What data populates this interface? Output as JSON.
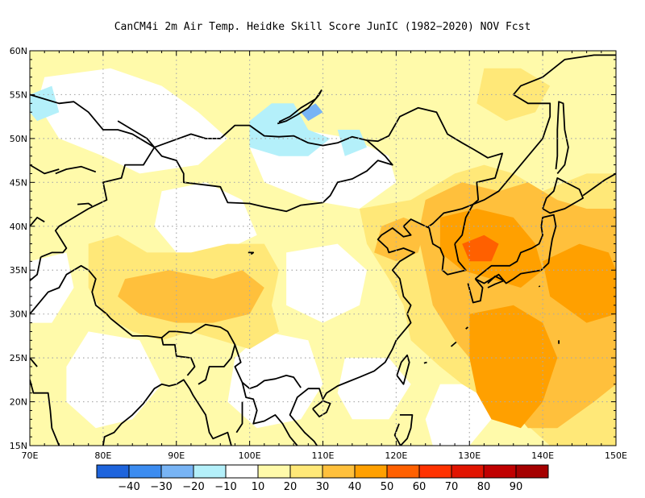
{
  "title": "CanCM4i  2m Air Temp. Heidke Skill Score JunIC (1982−2020) NOV Fcst",
  "lat_labels": [
    "60N",
    "55N",
    "50N",
    "45N",
    "40N",
    "35N",
    "30N",
    "25N",
    "20N",
    "15N"
  ],
  "lat_values": [
    60,
    55,
    50,
    45,
    40,
    35,
    30,
    25,
    20,
    15
  ],
  "lon_labels": [
    "70E",
    "80E",
    "90E",
    "100E",
    "110E",
    "120E",
    "130E",
    "140E",
    "150E"
  ],
  "lon_values": [
    70,
    80,
    90,
    100,
    110,
    120,
    130,
    140,
    150
  ],
  "colorbar": {
    "labels": [
      "−40",
      "−30",
      "−20",
      "−10",
      "10",
      "20",
      "30",
      "40",
      "50",
      "60",
      "70",
      "80",
      "90"
    ],
    "colors": [
      "#1e64dc",
      "#3c8cf0",
      "#78b4f5",
      "#b4f0fa",
      "#ffffff",
      "#fffaaa",
      "#ffe878",
      "#ffc03c",
      "#ffa000",
      "#ff6000",
      "#ff3200",
      "#e11400",
      "#c00000",
      "#a50000"
    ]
  },
  "chart_data": {
    "type": "heatmap",
    "title": "CanCM4i  2m Air Temp. Heidke Skill Score JunIC (1982−2020) NOV Fcst",
    "xlim": [
      70,
      150
    ],
    "ylim": [
      15,
      60
    ],
    "grid": "dotted",
    "levels": [
      -40,
      -30,
      -20,
      -10,
      10,
      20,
      30,
      40,
      50,
      60,
      70,
      80,
      90
    ],
    "regions": [
      {
        "value": 15,
        "points": [
          [
            70,
            60
          ],
          [
            150,
            60
          ],
          [
            150,
            15
          ],
          [
            70,
            15
          ]
        ]
      },
      {
        "value": 5,
        "points": [
          [
            72,
            57
          ],
          [
            81,
            58
          ],
          [
            88,
            56
          ],
          [
            93,
            53
          ],
          [
            97,
            50
          ],
          [
            93,
            47
          ],
          [
            85,
            46
          ],
          [
            80,
            48
          ],
          [
            74,
            50
          ],
          [
            71,
            54
          ]
        ]
      },
      {
        "value": 5,
        "points": [
          [
            100,
            49
          ],
          [
            107,
            51
          ],
          [
            114,
            50
          ],
          [
            119,
            48
          ],
          [
            120,
            45
          ],
          [
            115,
            42
          ],
          [
            108,
            43
          ],
          [
            102,
            45
          ]
        ]
      },
      {
        "value": 5,
        "points": [
          [
            88,
            44
          ],
          [
            94,
            45
          ],
          [
            99,
            43
          ],
          [
            101,
            39
          ],
          [
            96,
            37
          ],
          [
            90,
            37
          ],
          [
            87,
            40
          ]
        ]
      },
      {
        "value": 5,
        "points": [
          [
            105,
            37
          ],
          [
            112,
            38
          ],
          [
            116,
            35
          ],
          [
            115,
            31
          ],
          [
            110,
            29
          ],
          [
            105,
            31
          ]
        ]
      },
      {
        "value": 5,
        "points": [
          [
            70,
            36
          ],
          [
            75,
            37
          ],
          [
            76,
            33
          ],
          [
            73,
            29
          ],
          [
            70,
            29
          ]
        ]
      },
      {
        "value": 5,
        "points": [
          [
            98,
            25
          ],
          [
            102,
            28
          ],
          [
            108,
            27
          ],
          [
            110,
            22
          ],
          [
            107,
            18
          ],
          [
            101,
            17
          ],
          [
            97,
            20
          ]
        ]
      },
      {
        "value": 5,
        "points": [
          [
            78,
            28
          ],
          [
            85,
            27
          ],
          [
            88,
            22
          ],
          [
            84,
            18
          ],
          [
            79,
            17
          ],
          [
            75,
            20
          ],
          [
            75,
            24
          ]
        ]
      },
      {
        "value": 5,
        "points": [
          [
            113,
            25
          ],
          [
            119,
            25
          ],
          [
            122,
            22
          ],
          [
            119,
            18
          ],
          [
            114,
            18
          ],
          [
            112,
            21
          ]
        ]
      },
      {
        "value": 5,
        "points": [
          [
            126,
            22
          ],
          [
            131,
            22
          ],
          [
            133,
            18
          ],
          [
            130,
            15
          ],
          [
            125,
            15
          ],
          [
            124,
            18
          ]
        ]
      },
      {
        "value": -15,
        "points": [
          [
            70,
            55
          ],
          [
            73,
            56
          ],
          [
            74,
            53
          ],
          [
            71,
            52
          ],
          [
            70,
            53
          ]
        ]
      },
      {
        "value": -15,
        "points": [
          [
            100,
            52
          ],
          [
            103,
            54
          ],
          [
            106,
            54
          ],
          [
            108,
            51
          ],
          [
            111,
            50
          ],
          [
            108,
            48
          ],
          [
            104,
            48
          ],
          [
            100,
            49
          ]
        ]
      },
      {
        "value": -15,
        "points": [
          [
            112,
            51
          ],
          [
            115,
            51
          ],
          [
            116,
            49
          ],
          [
            113,
            48
          ]
        ]
      },
      {
        "value": -25,
        "points": [
          [
            107,
            53
          ],
          [
            109,
            54
          ],
          [
            110,
            53
          ],
          [
            108,
            52
          ]
        ]
      },
      {
        "value": 25,
        "points": [
          [
            78,
            38
          ],
          [
            82,
            39
          ],
          [
            86,
            37
          ],
          [
            92,
            37
          ],
          [
            97,
            38
          ],
          [
            102,
            38
          ],
          [
            104,
            35
          ],
          [
            103,
            31
          ],
          [
            104,
            28
          ],
          [
            100,
            26
          ],
          [
            96,
            27
          ],
          [
            92,
            28
          ],
          [
            88,
            27
          ],
          [
            84,
            28
          ],
          [
            80,
            30
          ],
          [
            78,
            33
          ]
        ]
      },
      {
        "value": 25,
        "points": [
          [
            115,
            42
          ],
          [
            122,
            43
          ],
          [
            128,
            46
          ],
          [
            132,
            47
          ],
          [
            136,
            46
          ],
          [
            140,
            44
          ],
          [
            146,
            46
          ],
          [
            150,
            46
          ],
          [
            150,
            15
          ],
          [
            141,
            15
          ],
          [
            137,
            18
          ],
          [
            133,
            20
          ],
          [
            129,
            22
          ],
          [
            126,
            24
          ],
          [
            122,
            27
          ],
          [
            121,
            31
          ],
          [
            119,
            34
          ],
          [
            116,
            38
          ]
        ]
      },
      {
        "value": 25,
        "points": [
          [
            132,
            58
          ],
          [
            137,
            58
          ],
          [
            141,
            56
          ],
          [
            139,
            53
          ],
          [
            135,
            52
          ],
          [
            131,
            54
          ]
        ]
      },
      {
        "value": 35,
        "points": [
          [
            83,
            34
          ],
          [
            89,
            35
          ],
          [
            95,
            34
          ],
          [
            99,
            35
          ],
          [
            102,
            33
          ],
          [
            100,
            30
          ],
          [
            95,
            29
          ],
          [
            90,
            29
          ],
          [
            85,
            30
          ],
          [
            82,
            32
          ]
        ]
      },
      {
        "value": 35,
        "points": [
          [
            118,
            40
          ],
          [
            121,
            41
          ],
          [
            124,
            40
          ],
          [
            123,
            37
          ],
          [
            120,
            36
          ],
          [
            117,
            37
          ]
        ]
      },
      {
        "value": 35,
        "points": [
          [
            124,
            43
          ],
          [
            129,
            45
          ],
          [
            134,
            44
          ],
          [
            138,
            45
          ],
          [
            142,
            43
          ],
          [
            146,
            42
          ],
          [
            150,
            42
          ],
          [
            150,
            22
          ],
          [
            147,
            20
          ],
          [
            142,
            17
          ],
          [
            138,
            17
          ],
          [
            135,
            20
          ],
          [
            132,
            23
          ],
          [
            128,
            27
          ],
          [
            125,
            31
          ],
          [
            124,
            35
          ],
          [
            123,
            39
          ]
        ]
      },
      {
        "value": 45,
        "points": [
          [
            126,
            41
          ],
          [
            131,
            42
          ],
          [
            136,
            41
          ],
          [
            139,
            38
          ],
          [
            140,
            35
          ],
          [
            137,
            33
          ],
          [
            133,
            34
          ],
          [
            129,
            35
          ],
          [
            126,
            37
          ]
        ]
      },
      {
        "value": 45,
        "points": [
          [
            140,
            36
          ],
          [
            145,
            38
          ],
          [
            149,
            37
          ],
          [
            150,
            35
          ],
          [
            150,
            30
          ],
          [
            146,
            29
          ],
          [
            141,
            32
          ]
        ]
      },
      {
        "value": 45,
        "points": [
          [
            130,
            30
          ],
          [
            136,
            31
          ],
          [
            140,
            29
          ],
          [
            142,
            25
          ],
          [
            140,
            20
          ],
          [
            137,
            17
          ],
          [
            133,
            18
          ],
          [
            131,
            21
          ],
          [
            130,
            25
          ]
        ]
      },
      {
        "value": 55,
        "points": [
          [
            129,
            38
          ],
          [
            132,
            39
          ],
          [
            134,
            38
          ],
          [
            133,
            36
          ],
          [
            130,
            36
          ]
        ]
      }
    ]
  }
}
